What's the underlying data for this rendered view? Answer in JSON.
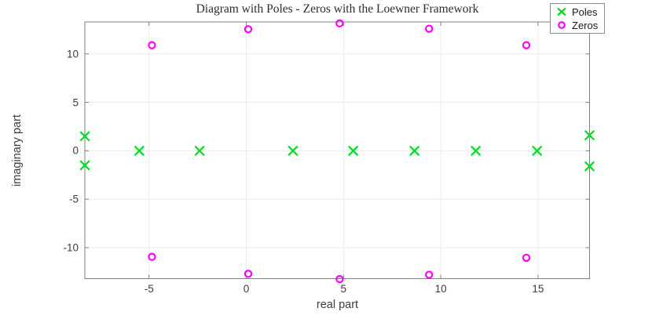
{
  "figure": {
    "background": "#ffffff"
  },
  "chart_data": {
    "type": "scatter",
    "title": "Diagram with Poles - Zeros with the Loewner Framework",
    "xlabel": "real part",
    "ylabel": "imaginary part",
    "xlim": [
      -8.3,
      17.65
    ],
    "ylim": [
      -13.2,
      13.3
    ],
    "xticks": [
      -5,
      0,
      5,
      10,
      15
    ],
    "yticks": [
      -10,
      -5,
      0,
      5,
      10
    ],
    "grid": true,
    "legend": {
      "position": "top-right-corner",
      "entries": [
        "Poles",
        "Zeros"
      ]
    },
    "series": [
      {
        "name": "Poles",
        "marker": "x",
        "color": "#00dc26",
        "points": [
          [
            -8.3,
            1.5
          ],
          [
            -8.3,
            -1.5
          ],
          [
            -5.5,
            0
          ],
          [
            -2.4,
            0
          ],
          [
            2.4,
            0
          ],
          [
            5.5,
            0
          ],
          [
            8.65,
            0
          ],
          [
            11.8,
            0
          ],
          [
            14.95,
            0
          ],
          [
            17.65,
            1.6
          ],
          [
            17.65,
            -1.6
          ]
        ]
      },
      {
        "name": "Zeros",
        "marker": "o",
        "color": "#ff00ff",
        "points": [
          [
            -4.85,
            10.9
          ],
          [
            0.1,
            12.55
          ],
          [
            4.8,
            13.15
          ],
          [
            9.4,
            12.6
          ],
          [
            14.4,
            10.9
          ],
          [
            -4.85,
            -10.95
          ],
          [
            0.1,
            -12.7
          ],
          [
            4.8,
            -13.25
          ],
          [
            9.4,
            -12.8
          ],
          [
            14.4,
            -11.05
          ]
        ]
      }
    ]
  },
  "colors": {
    "grid": "#ececec",
    "axis": "#7f7f7f",
    "tick_label": "#3c3c3c",
    "title": "#2e2e2e",
    "legend_border": "#8c8c8c"
  }
}
